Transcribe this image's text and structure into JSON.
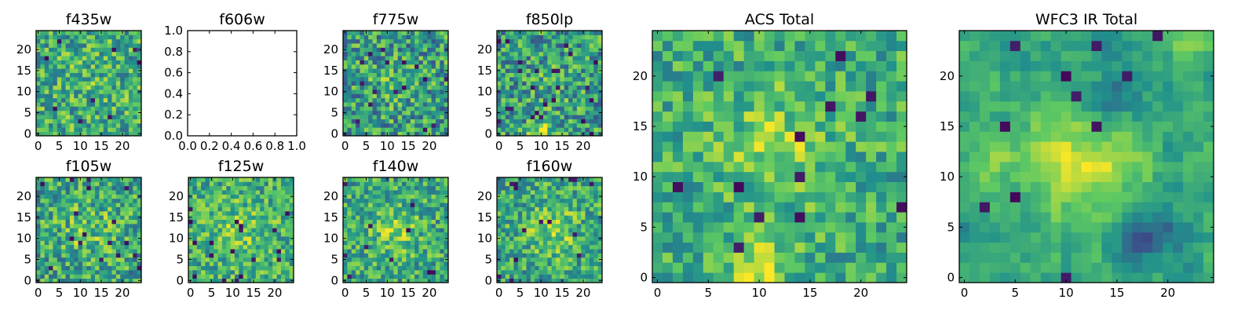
{
  "figure": {
    "background": "#ffffff",
    "colormap": "viridis",
    "colormap_stops": [
      "#440154",
      "#3b528b",
      "#21918c",
      "#5ec962",
      "#fde725"
    ]
  },
  "chart_data": [
    {
      "type": "heatmap",
      "id": "f435w",
      "title": "f435w",
      "grid": [
        25,
        25
      ],
      "xticks": [
        "0",
        "5",
        "10",
        "15",
        "20"
      ],
      "yticks": [
        "0",
        "5",
        "10",
        "15",
        "20"
      ],
      "xlim": [
        -0.5,
        24.5
      ],
      "ylim": [
        -0.5,
        24.5
      ],
      "seed": 11,
      "base": 0.62,
      "noise": 0.55,
      "smooth": 0,
      "dark_fraction": 0.01,
      "blobs": [
        [
          12,
          14,
          5,
          0.05
        ]
      ]
    },
    {
      "type": "empty",
      "id": "f606w",
      "title": "f606w",
      "xticks": [
        "0.0",
        "0.2",
        "0.4",
        "0.6",
        "0.8",
        "1.0"
      ],
      "yticks": [
        "0.0",
        "0.2",
        "0.4",
        "0.6",
        "0.8",
        "1.0"
      ],
      "xlim": [
        0,
        1
      ],
      "ylim": [
        0,
        1
      ]
    },
    {
      "type": "heatmap",
      "id": "f775w",
      "title": "f775w",
      "grid": [
        25,
        25
      ],
      "xticks": [
        "0",
        "5",
        "10",
        "15",
        "20"
      ],
      "yticks": [
        "0",
        "5",
        "10",
        "15",
        "20"
      ],
      "xlim": [
        -0.5,
        24.5
      ],
      "ylim": [
        -0.5,
        24.5
      ],
      "seed": 23,
      "base": 0.55,
      "noise": 0.6,
      "smooth": 0,
      "dark_fraction": 0.03,
      "blobs": [
        [
          12,
          12,
          4,
          0.1
        ]
      ]
    },
    {
      "type": "heatmap",
      "id": "f850lp",
      "title": "f850lp",
      "grid": [
        25,
        25
      ],
      "xticks": [
        "0",
        "5",
        "10",
        "15",
        "20"
      ],
      "yticks": [
        "0",
        "5",
        "10",
        "15",
        "20"
      ],
      "xlim": [
        -0.5,
        24.5
      ],
      "ylim": [
        -0.5,
        24.5
      ],
      "seed": 37,
      "base": 0.55,
      "noise": 0.6,
      "smooth": 0,
      "dark_fraction": 0.03,
      "blobs": [
        [
          10,
          1,
          2,
          0.3
        ],
        [
          12,
          12,
          4,
          0.05
        ]
      ]
    },
    {
      "type": "heatmap",
      "id": "acs_total",
      "title": "ACS Total",
      "grid": [
        25,
        25
      ],
      "xticks": [
        "0",
        "5",
        "10",
        "15",
        "20"
      ],
      "yticks": [
        "0",
        "5",
        "10",
        "15",
        "20"
      ],
      "xlim": [
        -0.5,
        24.5
      ],
      "ylim": [
        -0.5,
        24.5
      ],
      "seed": 51,
      "base": 0.62,
      "noise": 0.42,
      "smooth": 0,
      "dark_fraction": 0.025,
      "blobs": [
        [
          12,
          13,
          4,
          0.2
        ],
        [
          10,
          1,
          2,
          0.3
        ]
      ]
    },
    {
      "type": "heatmap",
      "id": "wfc3_ir_total",
      "title": "WFC3 IR Total",
      "grid": [
        25,
        25
      ],
      "xticks": [
        "0",
        "5",
        "10",
        "15",
        "20"
      ],
      "yticks": [
        "0",
        "5",
        "10",
        "15",
        "20"
      ],
      "xlim": [
        -0.5,
        24.5
      ],
      "ylim": [
        -0.5,
        24.5
      ],
      "seed": 67,
      "base": 0.6,
      "noise": 0.42,
      "smooth": 1,
      "dark_fraction": 0.02,
      "blobs": [
        [
          12,
          12,
          4,
          0.3
        ],
        [
          3,
          10,
          3,
          0.1
        ],
        [
          21,
          23,
          2,
          0.15
        ],
        [
          18,
          4,
          2,
          -0.35
        ],
        [
          15,
          18,
          3,
          -0.2
        ]
      ]
    },
    {
      "type": "heatmap",
      "id": "f105w",
      "title": "f105w",
      "grid": [
        25,
        25
      ],
      "xticks": [
        "0",
        "5",
        "10",
        "15",
        "20"
      ],
      "yticks": [
        "0",
        "5",
        "10",
        "15",
        "20"
      ],
      "xlim": [
        -0.5,
        24.5
      ],
      "ylim": [
        -0.5,
        24.5
      ],
      "seed": 79,
      "base": 0.58,
      "noise": 0.55,
      "smooth": 0,
      "dark_fraction": 0.02,
      "blobs": [
        [
          12,
          12,
          5,
          0.15
        ]
      ]
    },
    {
      "type": "heatmap",
      "id": "f125w",
      "title": "f125w",
      "grid": [
        25,
        25
      ],
      "xticks": [
        "0",
        "5",
        "10",
        "15",
        "20"
      ],
      "yticks": [
        "0",
        "5",
        "10",
        "15",
        "20"
      ],
      "xlim": [
        -0.5,
        24.5
      ],
      "ylim": [
        -0.5,
        24.5
      ],
      "seed": 83,
      "base": 0.62,
      "noise": 0.5,
      "smooth": 0,
      "dark_fraction": 0.02,
      "blobs": [
        [
          12,
          12,
          5,
          0.15
        ]
      ]
    },
    {
      "type": "heatmap",
      "id": "f140w",
      "title": "f140w",
      "grid": [
        25,
        25
      ],
      "xticks": [
        "0",
        "5",
        "10",
        "15",
        "20"
      ],
      "yticks": [
        "0",
        "5",
        "10",
        "15",
        "20"
      ],
      "xlim": [
        -0.5,
        24.5
      ],
      "ylim": [
        -0.5,
        24.5
      ],
      "seed": 97,
      "base": 0.6,
      "noise": 0.5,
      "smooth": 0,
      "dark_fraction": 0.02,
      "blobs": [
        [
          12,
          12,
          4,
          0.2
        ]
      ]
    },
    {
      "type": "heatmap",
      "id": "f160w",
      "title": "f160w",
      "grid": [
        25,
        25
      ],
      "xticks": [
        "0",
        "5",
        "10",
        "15",
        "20"
      ],
      "yticks": [
        "0",
        "5",
        "10",
        "15",
        "20"
      ],
      "xlim": [
        -0.5,
        24.5
      ],
      "ylim": [
        -0.5,
        24.5
      ],
      "seed": 103,
      "base": 0.6,
      "noise": 0.5,
      "smooth": 0,
      "dark_fraction": 0.02,
      "blobs": [
        [
          13,
          12,
          4,
          0.22
        ]
      ]
    }
  ]
}
